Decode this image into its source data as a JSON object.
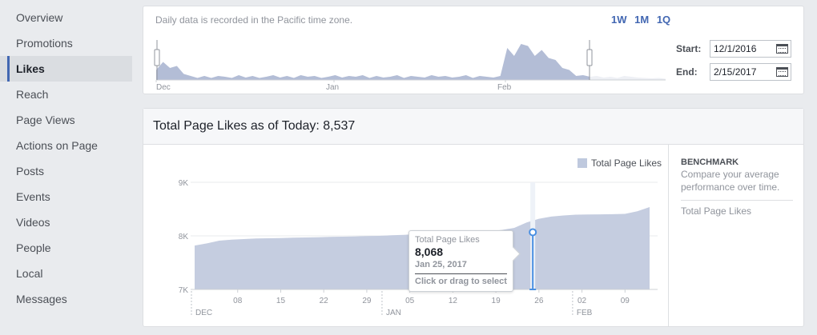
{
  "sidebar": {
    "items": [
      {
        "label": "Overview",
        "active": false
      },
      {
        "label": "Promotions",
        "active": false
      },
      {
        "label": "Likes",
        "active": true
      },
      {
        "label": "Reach",
        "active": false
      },
      {
        "label": "Page Views",
        "active": false
      },
      {
        "label": "Actions on Page",
        "active": false
      },
      {
        "label": "Posts",
        "active": false
      },
      {
        "label": "Events",
        "active": false
      },
      {
        "label": "Videos",
        "active": false
      },
      {
        "label": "People",
        "active": false
      },
      {
        "label": "Local",
        "active": false
      },
      {
        "label": "Messages",
        "active": false
      }
    ]
  },
  "date_panel": {
    "timezone_note": "Daily data is recorded in the Pacific time zone.",
    "range_buttons": [
      "1W",
      "1M",
      "1Q"
    ],
    "start_label": "Start:",
    "start_value": "12/1/2016",
    "end_label": "End:",
    "end_value": "2/15/2017",
    "mini_axis_labels": [
      "Dec",
      "Jan",
      "Feb"
    ],
    "mini_series": [
      0.25,
      0.45,
      0.3,
      0.35,
      0.15,
      0.1,
      0.05,
      0.1,
      0.05,
      0.1,
      0.08,
      0.05,
      0.12,
      0.06,
      0.1,
      0.05,
      0.08,
      0.12,
      0.06,
      0.1,
      0.05,
      0.12,
      0.08,
      0.1,
      0.05,
      0.08,
      0.12,
      0.06,
      0.1,
      0.08,
      0.12,
      0.05,
      0.1,
      0.06,
      0.08,
      0.12,
      0.05,
      0.1,
      0.08,
      0.06,
      0.12,
      0.08,
      0.1,
      0.06,
      0.08,
      0.12,
      0.05,
      0.1,
      0.08,
      0.06,
      0.1,
      0.8,
      0.6,
      0.9,
      0.85,
      0.6,
      0.75,
      0.55,
      0.5,
      0.3,
      0.25,
      0.1,
      0.12,
      0.08,
      0.1,
      0.06,
      0.08,
      0.05,
      0.1,
      0.08,
      0.06,
      0.05,
      0.04,
      0.05,
      0.03
    ]
  },
  "main_panel": {
    "title": "Total Page Likes as of Today: 8,537",
    "legend_label": "Total Page Likes",
    "tooltip": {
      "label": "Total Page Likes",
      "value": "8,068",
      "date": "Jan 25, 2017",
      "hint": "Click or drag to select"
    },
    "benchmark": {
      "title": "BENCHMARK",
      "description": "Compare your average performance over time.",
      "item": "Total Page Likes"
    }
  },
  "colors": {
    "accent": "#4267b2",
    "area_fill": "#c5cde0",
    "highlight": "#4a90e2"
  },
  "chart_data": {
    "type": "area",
    "title": "",
    "xlabel": "",
    "ylabel": "",
    "ylim": [
      7000,
      9000
    ],
    "y_ticks": [
      "7K",
      "8K",
      "9K"
    ],
    "x_ticks": [
      "08",
      "15",
      "22",
      "29",
      "05",
      "12",
      "19",
      "26",
      "02",
      "09"
    ],
    "x_month_labels": [
      "DEC",
      "JAN",
      "FEB"
    ],
    "grid": true,
    "legend": "top-right",
    "series": [
      {
        "name": "Total Page Likes",
        "x_day_index": [
          0,
          2,
          4,
          6,
          8,
          10,
          12,
          14,
          16,
          18,
          20,
          22,
          24,
          26,
          28,
          30,
          32,
          34,
          36,
          38,
          40,
          42,
          44,
          46,
          48,
          50,
          52,
          54,
          56,
          58,
          60,
          62,
          64,
          66,
          68,
          70,
          72,
          74
        ],
        "values": [
          7820,
          7860,
          7910,
          7930,
          7940,
          7950,
          7955,
          7960,
          7965,
          7970,
          7975,
          7980,
          7985,
          7990,
          7995,
          8000,
          8010,
          8020,
          8030,
          8040,
          8050,
          8060,
          8068,
          8080,
          8090,
          8110,
          8150,
          8250,
          8320,
          8360,
          8380,
          8395,
          8400,
          8402,
          8405,
          8410,
          8460,
          8537
        ]
      }
    ],
    "highlight": {
      "date": "Jan 25, 2017",
      "value": 8068
    }
  }
}
